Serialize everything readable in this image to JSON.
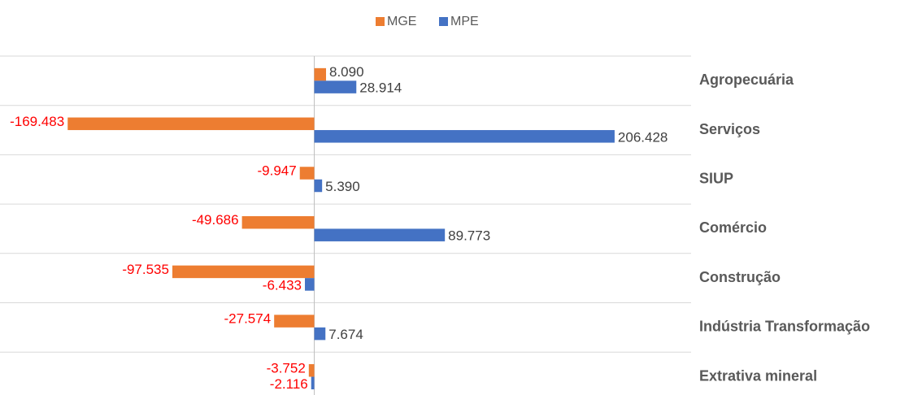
{
  "chart_data": {
    "type": "hbar",
    "categories": [
      "Agropecuária",
      "Serviços",
      "SIUP",
      "Comércio",
      "Construção",
      "Indústria Transformação",
      "Extrativa mineral"
    ],
    "series": [
      {
        "name": "MGE",
        "color": "#ed7d31",
        "values": [
          8090,
          -169483,
          -9947,
          -49686,
          -97535,
          -27574,
          -3752
        ],
        "value_labels": [
          "8.090",
          "-169.483",
          "-9.947",
          "-49.686",
          "-97.535",
          "-27.574",
          "-3.752"
        ]
      },
      {
        "name": "MPE",
        "color": "#4472c4",
        "values": [
          28914,
          206428,
          5390,
          89773,
          -6433,
          7674,
          -2116
        ],
        "value_labels": [
          "28.914",
          "206.428",
          "5.390",
          "89.773",
          "-6.433",
          "7.674",
          "-2.116"
        ]
      }
    ],
    "xlim": [
      -216000,
      259000
    ],
    "label_colors": {
      "negative": "#ff0000",
      "positive": "#404040"
    },
    "legend": "top"
  }
}
